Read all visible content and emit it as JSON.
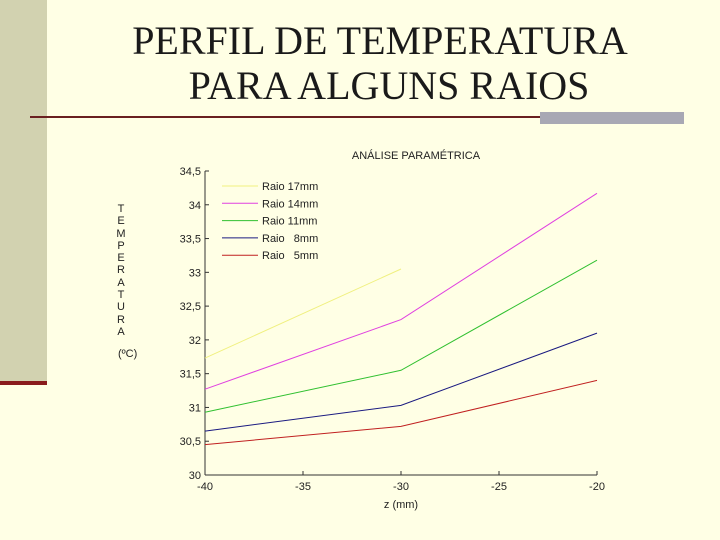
{
  "slide": {
    "title_line1": "PERFIL DE TEMPERATURA",
    "title_line2": "PARA ALGUNS RAIOS"
  },
  "chart_data": {
    "type": "line",
    "title": "ANÁLISE PARAMÉTRICA",
    "xlabel": "z (mm)",
    "ylabel_letters": "T\nE\nM\nP\nE\nR\nA\nT\nU\nR\nA",
    "ylabel_unit": "(ºC)",
    "xlim": [
      -40,
      -20
    ],
    "ylim": [
      30,
      34.5
    ],
    "xticks": [
      -40,
      -35,
      -30,
      -25,
      -20
    ],
    "xtick_labels": [
      "-40",
      "-35",
      "-30",
      "-25",
      "-20"
    ],
    "yticks": [
      30,
      30.5,
      31,
      31.5,
      32,
      32.5,
      33,
      33.5,
      34,
      34.5
    ],
    "ytick_labels": [
      "30",
      "30,5",
      "31",
      "31,5",
      "32",
      "32,5",
      "33",
      "33,5",
      "34",
      "34,5"
    ],
    "legend_position": "top-left",
    "grid": false,
    "series": [
      {
        "name": "Raio 17mm",
        "color": "#f0f080",
        "x": [
          -40,
          -30
        ],
        "y": [
          31.73,
          33.05
        ]
      },
      {
        "name": "Raio 14mm",
        "color": "#e040e0",
        "x": [
          -40,
          -30,
          -20
        ],
        "y": [
          31.27,
          32.3,
          34.17
        ]
      },
      {
        "name": "Raio 11mm",
        "color": "#30c030",
        "x": [
          -40,
          -30,
          -20
        ],
        "y": [
          30.93,
          31.55,
          33.18
        ]
      },
      {
        "name": "Raio   8mm",
        "color": "#1a1a80",
        "x": [
          -40,
          -30,
          -20
        ],
        "y": [
          30.65,
          31.03,
          32.1
        ]
      },
      {
        "name": "Raio   5mm",
        "color": "#c02020",
        "x": [
          -40,
          -30,
          -20
        ],
        "y": [
          30.45,
          30.72,
          31.4
        ]
      }
    ]
  }
}
